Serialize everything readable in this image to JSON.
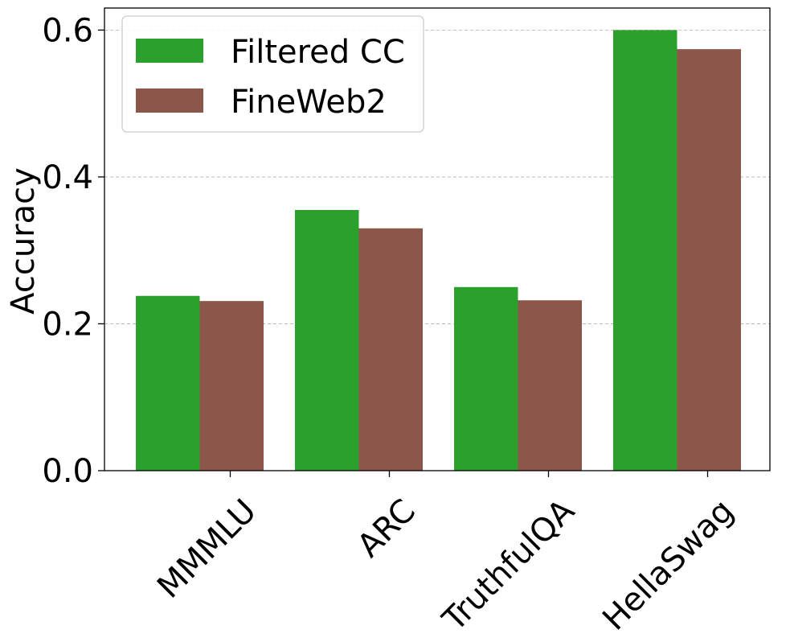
{
  "chart_data": {
    "type": "bar",
    "categories": [
      "MMMLU",
      "ARC",
      "TruthfulQA",
      "HellaSwag"
    ],
    "series": [
      {
        "name": "Filtered CC",
        "values": [
          0.238,
          0.355,
          0.25,
          0.6
        ],
        "color": "#2ca02c"
      },
      {
        "name": "FineWeb2",
        "values": [
          0.231,
          0.33,
          0.232,
          0.574
        ],
        "color": "#8c564b"
      }
    ],
    "title": "",
    "xlabel": "",
    "ylabel": "Accuracy",
    "ylim": [
      0,
      0.63
    ],
    "yticks": [
      0.0,
      0.2,
      0.4,
      0.6
    ],
    "ytick_labels": [
      "0.0",
      "0.2",
      "0.4",
      "0.6"
    ],
    "grid": "y-dashed",
    "legend_position": "upper-left",
    "xtick_rotation_deg": 45
  }
}
